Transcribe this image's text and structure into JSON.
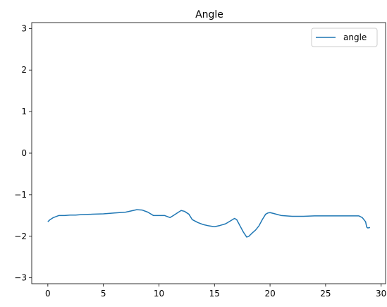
{
  "chart_data": {
    "type": "line",
    "title": "Angle",
    "xlabel": "",
    "ylabel": "",
    "xlim": [
      -1.45,
      30.4
    ],
    "ylim": [
      -3.1416,
      3.1416
    ],
    "x_ticks": [
      0,
      5,
      10,
      15,
      20,
      25,
      30
    ],
    "x_tick_labels": [
      "0",
      "5",
      "10",
      "15",
      "20",
      "25",
      "30"
    ],
    "y_ticks": [
      -3,
      -2,
      -1,
      0,
      1,
      2,
      3
    ],
    "y_tick_labels": [
      "−3",
      "−2",
      "−1",
      "0",
      "1",
      "2",
      "3"
    ],
    "grid": false,
    "legend": {
      "placement": "top-right",
      "entries": [
        "angle"
      ]
    },
    "colors": {
      "series": "#1f77b4",
      "axes": "#000000",
      "background": "#ffffff"
    },
    "series": [
      {
        "name": "angle",
        "x": [
          0,
          0.2,
          0.5,
          1,
          1.5,
          2,
          2.5,
          3,
          4,
          5,
          6,
          7,
          7.5,
          8,
          8.5,
          9,
          9.5,
          10,
          10.5,
          11,
          11.3,
          11.7,
          12,
          12.3,
          12.7,
          13,
          13.5,
          14,
          14.5,
          15,
          15.5,
          16,
          16.5,
          16.8,
          17,
          17.3,
          17.6,
          17.9,
          18.1,
          18.4,
          18.7,
          19,
          19.3,
          19.6,
          19.8,
          20,
          20.3,
          20.7,
          21,
          22,
          23,
          24,
          25,
          26,
          27,
          27.5,
          28,
          28.3,
          28.6,
          28.7,
          28.8,
          29
        ],
        "y": [
          -1.65,
          -1.6,
          -1.55,
          -1.5,
          -1.5,
          -1.49,
          -1.49,
          -1.48,
          -1.47,
          -1.46,
          -1.44,
          -1.42,
          -1.39,
          -1.36,
          -1.37,
          -1.42,
          -1.5,
          -1.5,
          -1.5,
          -1.55,
          -1.5,
          -1.43,
          -1.38,
          -1.4,
          -1.47,
          -1.6,
          -1.67,
          -1.72,
          -1.75,
          -1.77,
          -1.74,
          -1.7,
          -1.62,
          -1.57,
          -1.6,
          -1.75,
          -1.9,
          -2.02,
          -2.0,
          -1.92,
          -1.85,
          -1.75,
          -1.6,
          -1.47,
          -1.44,
          -1.43,
          -1.45,
          -1.48,
          -1.5,
          -1.52,
          -1.52,
          -1.51,
          -1.51,
          -1.51,
          -1.51,
          -1.51,
          -1.51,
          -1.55,
          -1.65,
          -1.78,
          -1.8,
          -1.79
        ]
      }
    ]
  }
}
